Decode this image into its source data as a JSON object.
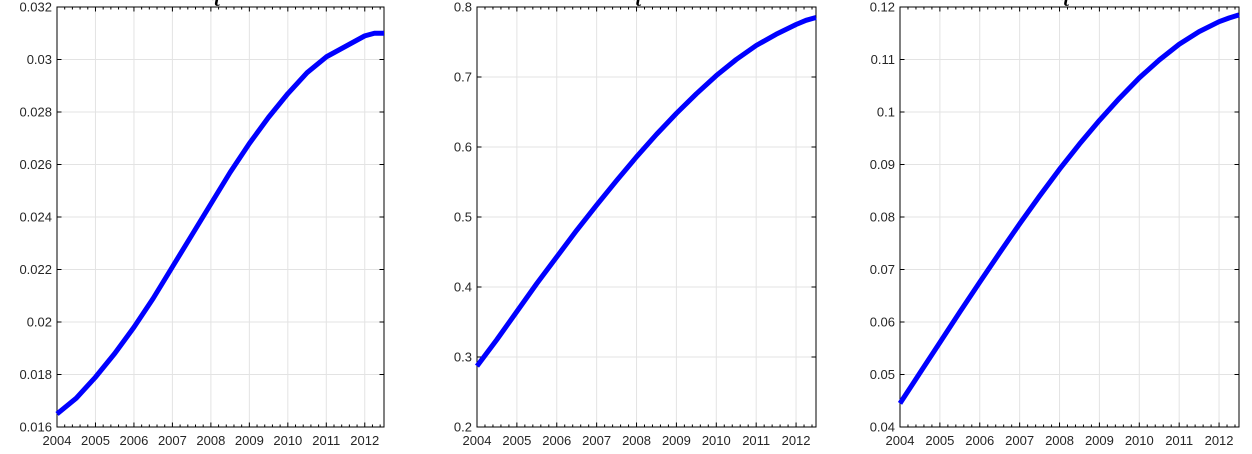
{
  "chart_data": [
    {
      "type": "line",
      "title": {
        "symbol": "τ",
        "superscript": "K"
      },
      "xlabel": "",
      "ylabel": "",
      "xlim": [
        2004,
        2012.5
      ],
      "ylim": [
        0.016,
        0.032
      ],
      "xticks": [
        2004,
        2005,
        2006,
        2007,
        2008,
        2009,
        2010,
        2011,
        2012
      ],
      "yticks": [
        0.016,
        0.018,
        0.02,
        0.022,
        0.024,
        0.026,
        0.028,
        0.03,
        0.032
      ],
      "ytick_labels": [
        "0.016",
        "0.018",
        "0.02",
        "0.022",
        "0.024",
        "0.026",
        "0.028",
        "0.03",
        "0.032"
      ],
      "grid": true,
      "series": [
        {
          "color": "#0000ff",
          "x": [
            2004,
            2004.5,
            2005,
            2005.5,
            2006,
            2006.5,
            2007,
            2007.5,
            2008,
            2008.5,
            2009,
            2009.5,
            2010,
            2010.5,
            2011,
            2011.5,
            2012,
            2012.25,
            2012.5
          ],
          "y": [
            0.0165,
            0.0171,
            0.0179,
            0.0188,
            0.0198,
            0.0209,
            0.0221,
            0.0233,
            0.0245,
            0.0257,
            0.0268,
            0.0278,
            0.0287,
            0.0295,
            0.0301,
            0.0305,
            0.0309,
            0.031,
            0.031
          ]
        }
      ]
    },
    {
      "type": "line",
      "title": {
        "symbol": "τ",
        "superscript": "WL"
      },
      "xlabel": "",
      "ylabel": "",
      "xlim": [
        2004,
        2012.5
      ],
      "ylim": [
        0.2,
        0.8
      ],
      "xticks": [
        2004,
        2005,
        2006,
        2007,
        2008,
        2009,
        2010,
        2011,
        2012
      ],
      "yticks": [
        0.2,
        0.3,
        0.4,
        0.5,
        0.6,
        0.7,
        0.8
      ],
      "ytick_labels": [
        "0.2",
        "0.3",
        "0.4",
        "0.5",
        "0.6",
        "0.7",
        "0.8"
      ],
      "grid": true,
      "series": [
        {
          "color": "#0000ff",
          "x": [
            2004,
            2004.5,
            2005,
            2005.5,
            2006,
            2006.5,
            2007,
            2007.5,
            2008,
            2008.5,
            2009,
            2009.5,
            2010,
            2010.5,
            2011,
            2011.5,
            2012,
            2012.25,
            2012.5
          ],
          "y": [
            0.287,
            0.325,
            0.365,
            0.405,
            0.443,
            0.481,
            0.517,
            0.552,
            0.586,
            0.618,
            0.648,
            0.676,
            0.702,
            0.725,
            0.745,
            0.761,
            0.775,
            0.781,
            0.785
          ]
        }
      ]
    },
    {
      "type": "line",
      "title": {
        "symbol": "τ",
        "superscript": "S"
      },
      "xlabel": "",
      "ylabel": "",
      "xlim": [
        2004,
        2012.5
      ],
      "ylim": [
        0.04,
        0.12
      ],
      "xticks": [
        2004,
        2005,
        2006,
        2007,
        2008,
        2009,
        2010,
        2011,
        2012
      ],
      "yticks": [
        0.04,
        0.05,
        0.06,
        0.07,
        0.08,
        0.09,
        0.1,
        0.11,
        0.12
      ],
      "ytick_labels": [
        "0.04",
        "0.05",
        "0.06",
        "0.07",
        "0.08",
        "0.09",
        "0.1",
        "0.11",
        "0.12"
      ],
      "grid": true,
      "series": [
        {
          "color": "#0000ff",
          "x": [
            2004,
            2004.5,
            2005,
            2005.5,
            2006,
            2006.5,
            2007,
            2007.5,
            2008,
            2008.5,
            2009,
            2009.5,
            2010,
            2010.5,
            2011,
            2011.5,
            2012,
            2012.25,
            2012.5
          ],
          "y": [
            0.0445,
            0.0503,
            0.0561,
            0.0619,
            0.0676,
            0.0732,
            0.0787,
            0.084,
            0.0891,
            0.0939,
            0.0984,
            0.1026,
            0.1065,
            0.1099,
            0.1129,
            0.1153,
            0.1172,
            0.1179,
            0.1185
          ]
        }
      ]
    }
  ]
}
